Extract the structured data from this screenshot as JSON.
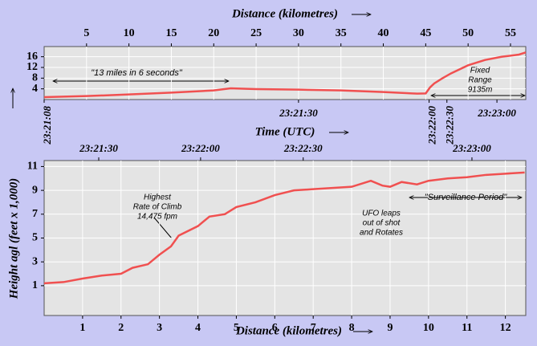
{
  "chart_data": [
    {
      "type": "line",
      "x_label": "Distance (kilometres)",
      "time_label": "Time (UTC)",
      "x": [
        0,
        5,
        10,
        15,
        20,
        22,
        25,
        30,
        35,
        40,
        44,
        45,
        45.5,
        46,
        47,
        48,
        50,
        52,
        54,
        56,
        56.8
      ],
      "series": [
        {
          "color": "#f05050",
          "values": [
            0.9,
            1.3,
            1.9,
            2.6,
            3.4,
            4.2,
            3.9,
            3.7,
            3.4,
            2.8,
            2.2,
            2.3,
            4.5,
            6.0,
            8.0,
            9.8,
            12.8,
            14.8,
            16.0,
            16.8,
            17.6
          ]
        }
      ],
      "xlim": [
        0,
        56.8
      ],
      "ylim": [
        0,
        19.8
      ],
      "xticks": [
        5,
        10,
        15,
        20,
        25,
        30,
        35,
        40,
        45,
        50,
        55
      ],
      "yticks": [
        4,
        8,
        12,
        16
      ],
      "time_ticks": [
        {
          "value": 0,
          "label": "23:21:08"
        },
        {
          "value": 30,
          "label": "23:21:30"
        },
        {
          "value": 45.4,
          "label": "23:22:00"
        },
        {
          "value": 47.5,
          "label": "23:22:30"
        },
        {
          "value": 53.4,
          "label": "23:23:00"
        }
      ],
      "annotations": [
        {
          "text": [
            "\"13 miles in 6 seconds\""
          ]
        },
        {
          "text": [
            "Fixed",
            "Range",
            "9135m"
          ]
        }
      ]
    },
    {
      "type": "line",
      "x_label": "Distance (kilometres)",
      "y_label": "Height agl (feet x 1,000)",
      "x": [
        0,
        0.5,
        1,
        1.5,
        2,
        2.3,
        2.7,
        3,
        3.3,
        3.5,
        4,
        4.3,
        4.7,
        5,
        5.5,
        6,
        6.5,
        7,
        7.5,
        8,
        8.5,
        8.8,
        9,
        9.3,
        9.7,
        10,
        10.5,
        11,
        11.5,
        12,
        12.5
      ],
      "series": [
        {
          "color": "#f05050",
          "values": [
            1.2,
            1.3,
            1.6,
            1.85,
            2.0,
            2.5,
            2.8,
            3.6,
            4.3,
            5.2,
            6.0,
            6.8,
            7.0,
            7.6,
            8.0,
            8.6,
            9.0,
            9.1,
            9.2,
            9.3,
            9.8,
            9.4,
            9.3,
            9.7,
            9.5,
            9.8,
            10.0,
            10.1,
            10.3,
            10.4,
            10.5
          ]
        }
      ],
      "xlim": [
        0,
        12.53
      ],
      "ylim": [
        -1.5,
        11.5
      ],
      "xticks": [
        1,
        2,
        3,
        4,
        5,
        6,
        7,
        8,
        9,
        10,
        11,
        12
      ],
      "yticks": [
        1,
        3,
        5,
        7,
        9,
        11
      ],
      "time_ticks": [
        {
          "value": 1.42,
          "label": "23:21:30"
        },
        {
          "value": 4.07,
          "label": "23:22:00"
        },
        {
          "value": 6.74,
          "label": "23:22:30"
        },
        {
          "value": 11.13,
          "label": "23:23:00"
        }
      ],
      "annotations": [
        {
          "text": [
            "Highest",
            "Rate of Climb",
            "14,475 fpm"
          ]
        },
        {
          "text": [
            "UFO leaps",
            "out of shot",
            "and Rotates"
          ]
        },
        {
          "text": [
            "\"Surveillance Period\""
          ]
        }
      ]
    }
  ]
}
